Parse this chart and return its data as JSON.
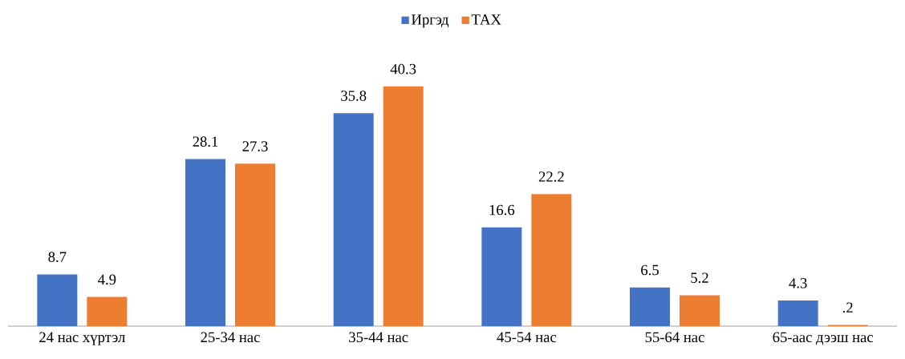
{
  "chart_data": {
    "type": "bar",
    "categories": [
      "24 нас хүртэл",
      "25-34 нас",
      "35-44 нас",
      "45-54 нас",
      "55-64 нас",
      "65-аас дээш нас"
    ],
    "series": [
      {
        "name": "Иргэд",
        "color": "#4472c4",
        "values": [
          8.7,
          28.1,
          35.8,
          16.6,
          6.5,
          4.3
        ],
        "value_labels": [
          "8.7",
          "28.1",
          "35.8",
          "16.6",
          "6.5",
          "4.3"
        ]
      },
      {
        "name": "ТАХ",
        "color": "#ed7d31",
        "values": [
          4.9,
          27.3,
          40.3,
          22.2,
          5.2,
          0.2
        ],
        "value_labels": [
          "4.9",
          "27.3",
          "40.3",
          "22.2",
          "5.2",
          ".2"
        ]
      }
    ],
    "legend": "top"
  }
}
